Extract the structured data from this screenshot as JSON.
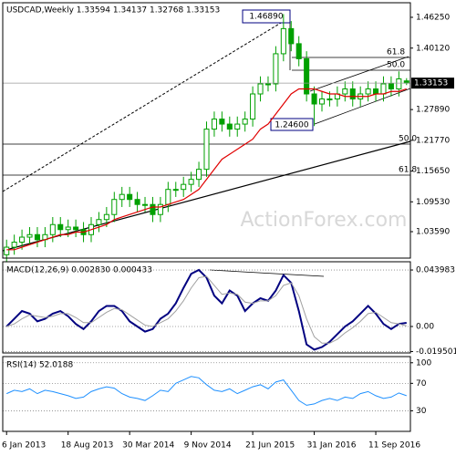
{
  "chart_data": [
    {
      "type": "candlestick",
      "title": "USDCAD,Weekly  1.33594 1.34137 1.32768 1.33153",
      "watermark": "ActionForex.com",
      "categories": [
        "6 Jan 2013",
        null,
        null,
        null,
        null,
        null,
        null,
        null,
        "18 Aug 2013",
        null,
        null,
        null,
        null,
        null,
        null,
        null,
        "30 Mar 2014",
        null,
        null,
        null,
        null,
        null,
        null,
        null,
        "9 Nov 2014",
        null,
        null,
        null,
        null,
        null,
        null,
        null,
        "21 Jun 2015",
        null,
        null,
        null,
        null,
        null,
        null,
        null,
        "31 Jan 2016",
        null,
        null,
        null,
        null,
        null,
        null,
        null,
        "11 Sep 2016",
        null,
        null,
        null,
        null
      ],
      "open": [
        0.99,
        1.005,
        1.015,
        1.025,
        1.03,
        1.02,
        1.03,
        1.05,
        1.04,
        1.045,
        1.04,
        1.03,
        1.05,
        1.06,
        1.07,
        1.1,
        1.11,
        1.1,
        1.09,
        1.09,
        1.07,
        1.09,
        1.12,
        1.12,
        1.13,
        1.14,
        1.16,
        1.24,
        1.26,
        1.25,
        1.24,
        1.25,
        1.26,
        1.31,
        1.33,
        1.33,
        1.39,
        1.44,
        1.41,
        1.38,
        1.31,
        1.29,
        1.3,
        1.3,
        1.31,
        1.32,
        1.3,
        1.31,
        1.32,
        1.31,
        1.33,
        1.32,
        1.33594
      ],
      "high": [
        1.02,
        1.03,
        1.04,
        1.045,
        1.045,
        1.045,
        1.065,
        1.065,
        1.06,
        1.06,
        1.055,
        1.065,
        1.075,
        1.085,
        1.115,
        1.125,
        1.125,
        1.115,
        1.105,
        1.105,
        1.105,
        1.135,
        1.135,
        1.145,
        1.155,
        1.175,
        1.255,
        1.275,
        1.275,
        1.265,
        1.265,
        1.275,
        1.325,
        1.345,
        1.345,
        1.405,
        1.4689,
        1.455,
        1.425,
        1.395,
        1.325,
        1.315,
        1.315,
        1.325,
        1.335,
        1.335,
        1.325,
        1.335,
        1.335,
        1.345,
        1.345,
        1.355,
        1.34137
      ],
      "low": [
        0.975,
        0.99,
        1.0,
        1.01,
        1.005,
        1.005,
        1.015,
        1.025,
        1.025,
        1.025,
        1.015,
        1.015,
        1.035,
        1.045,
        1.055,
        1.085,
        1.085,
        1.075,
        1.075,
        1.055,
        1.055,
        1.075,
        1.105,
        1.105,
        1.115,
        1.125,
        1.145,
        1.225,
        1.235,
        1.225,
        1.225,
        1.235,
        1.245,
        1.295,
        1.315,
        1.315,
        1.375,
        1.395,
        1.365,
        1.295,
        1.246,
        1.275,
        1.285,
        1.285,
        1.295,
        1.285,
        1.285,
        1.295,
        1.295,
        1.295,
        1.305,
        1.305,
        1.32768
      ],
      "close": [
        1.005,
        1.015,
        1.025,
        1.03,
        1.02,
        1.03,
        1.05,
        1.04,
        1.045,
        1.04,
        1.03,
        1.05,
        1.06,
        1.07,
        1.1,
        1.11,
        1.1,
        1.09,
        1.09,
        1.07,
        1.09,
        1.12,
        1.12,
        1.13,
        1.14,
        1.16,
        1.24,
        1.26,
        1.25,
        1.24,
        1.25,
        1.26,
        1.31,
        1.33,
        1.33,
        1.39,
        1.44,
        1.41,
        1.38,
        1.31,
        1.29,
        1.3,
        1.3,
        1.31,
        1.32,
        1.3,
        1.31,
        1.32,
        1.31,
        1.33,
        1.32,
        1.34,
        1.33153
      ],
      "color": "#00a000",
      "series": [
        {
          "color": "#e00000",
          "values": [
            1.0,
            1.0,
            1.005,
            1.01,
            1.015,
            1.02,
            1.025,
            1.03,
            1.03,
            1.035,
            1.035,
            1.04,
            1.045,
            1.05,
            1.06,
            1.065,
            1.07,
            1.075,
            1.08,
            1.085,
            1.085,
            1.09,
            1.095,
            1.1,
            1.11,
            1.12,
            1.14,
            1.16,
            1.18,
            1.19,
            1.2,
            1.21,
            1.22,
            1.24,
            1.25,
            1.27,
            1.29,
            1.31,
            1.32,
            1.32,
            1.32,
            1.315,
            1.31,
            1.31,
            1.305,
            1.305,
            1.305,
            1.305,
            1.31,
            1.31,
            1.315,
            1.315,
            1.32
          ]
        }
      ],
      "ylim": [
        0.9833,
        1.4915
      ],
      "yticks": [
        {
          "value": 1.4625,
          "label": "1.46250"
        },
        {
          "value": 1.4012,
          "label": "1.40120"
        },
        {
          "value": 1.2789,
          "label": "1.27890"
        },
        {
          "value": 1.2177,
          "label": "1.21770"
        },
        {
          "value": 1.1565,
          "label": "1.15650"
        },
        {
          "value": 1.0953,
          "label": "1.09530"
        },
        {
          "value": 1.0359,
          "label": "1.03590"
        }
      ],
      "last_price_label": "1.33153",
      "annotations": [
        "1.46890",
        "1.24600",
        "61.8",
        "50.0",
        "50.0",
        "61.8"
      ]
    },
    {
      "type": "line",
      "title": "MACD(12,26,9) 0.002830 0.000433",
      "series": [
        {
          "color": "#000080",
          "values": [
            0.0,
            0.006,
            0.012,
            0.01,
            0.004,
            0.006,
            0.01,
            0.012,
            0.008,
            0.002,
            -0.002,
            0.004,
            0.012,
            0.016,
            0.016,
            0.012,
            0.004,
            0.0,
            -0.004,
            -0.002,
            0.006,
            0.01,
            0.018,
            0.03,
            0.041,
            0.044,
            0.038,
            0.024,
            0.018,
            0.028,
            0.024,
            0.012,
            0.018,
            0.022,
            0.02,
            0.028,
            0.04,
            0.034,
            0.012,
            -0.014,
            -0.018,
            -0.016,
            -0.012,
            -0.006,
            0.0,
            0.004,
            0.01,
            0.016,
            0.01,
            0.002,
            -0.002,
            0.002,
            0.00283
          ]
        },
        {
          "color": "#a0a0a0",
          "values": [
            0.0,
            0.002,
            0.006,
            0.009,
            0.008,
            0.007,
            0.008,
            0.01,
            0.01,
            0.007,
            0.003,
            0.003,
            0.007,
            0.011,
            0.014,
            0.013,
            0.009,
            0.005,
            0.001,
            0.0,
            0.003,
            0.006,
            0.012,
            0.02,
            0.03,
            0.038,
            0.039,
            0.032,
            0.025,
            0.026,
            0.025,
            0.019,
            0.018,
            0.02,
            0.02,
            0.024,
            0.032,
            0.034,
            0.024,
            0.006,
            -0.008,
            -0.013,
            -0.013,
            -0.01,
            -0.005,
            -0.001,
            0.004,
            0.01,
            0.011,
            0.007,
            0.003,
            0.002,
            0.000433
          ]
        }
      ],
      "ylim": [
        -0.0206,
        0.0504
      ],
      "yticks": [
        0.043983,
        {
          "value": 0,
          "label": "0.00"
        },
        -0.019501
      ],
      "grid": true
    },
    {
      "type": "line",
      "title": "RSI(14) 52.0188",
      "series": [
        {
          "color": "#1e90ff",
          "values": [
            55,
            60,
            58,
            62,
            55,
            60,
            58,
            55,
            52,
            48,
            50,
            58,
            62,
            65,
            63,
            55,
            50,
            48,
            45,
            52,
            60,
            58,
            70,
            75,
            80,
            78,
            68,
            60,
            58,
            62,
            55,
            60,
            65,
            68,
            62,
            72,
            75,
            60,
            45,
            38,
            40,
            45,
            48,
            45,
            50,
            48,
            55,
            58,
            52,
            48,
            50,
            56,
            52.0188
          ]
        }
      ],
      "ylim": [
        0,
        109
      ],
      "yticks": [
        100,
        70,
        30
      ],
      "grid": true
    }
  ]
}
